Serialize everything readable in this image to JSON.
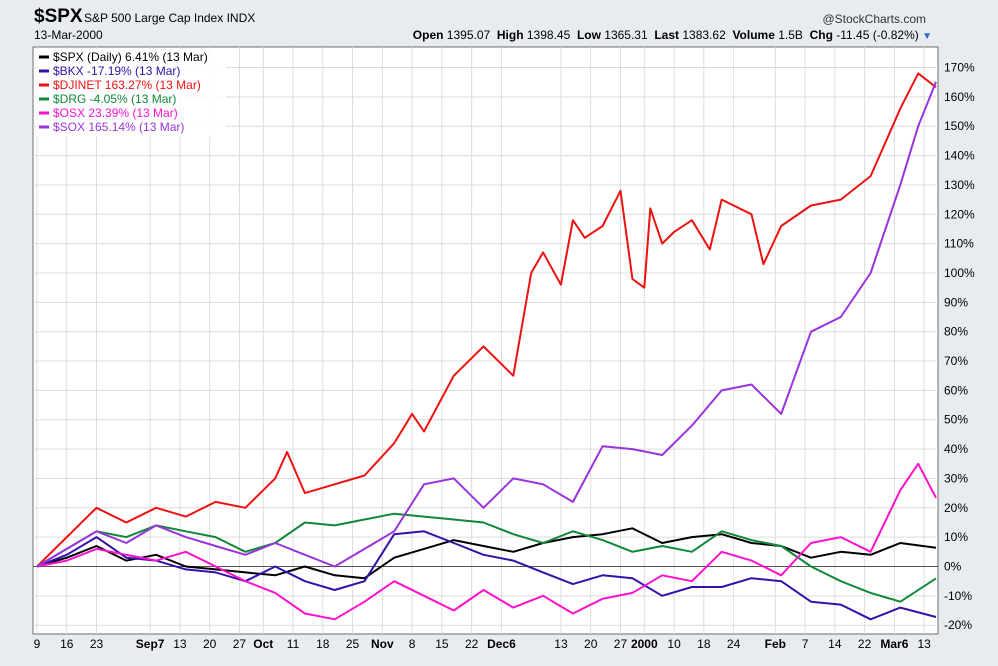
{
  "header": {
    "ticker": "$SPX",
    "index_name": "S&P 500 Large Cap Index",
    "exchange": "INDX",
    "brand": "@StockCharts.com",
    "date": "13-Mar-2000",
    "open_label": "Open",
    "open_value": "1395.07",
    "high_label": "High",
    "high_value": "1398.45",
    "low_label": "Low",
    "low_value": "1365.31",
    "last_label": "Last",
    "last_value": "1383.62",
    "volume_label": "Volume",
    "volume_value": "1.5B",
    "chg_label": "Chg",
    "chg_value": "-11.45 (-0.82%)"
  },
  "chart_data": {
    "type": "line",
    "ylim": [
      -23,
      177
    ],
    "y_ticks": [
      -20,
      -10,
      0,
      10,
      20,
      30,
      40,
      50,
      60,
      70,
      80,
      90,
      100,
      110,
      120,
      130,
      140,
      150,
      160,
      170
    ],
    "x_tick_labels": [
      {
        "x": 0,
        "label": "9"
      },
      {
        "x": 5,
        "label": "16"
      },
      {
        "x": 10,
        "label": "23"
      },
      {
        "x": 19,
        "label": "Sep7",
        "bold": true
      },
      {
        "x": 24,
        "label": "13"
      },
      {
        "x": 29,
        "label": "20"
      },
      {
        "x": 34,
        "label": "27"
      },
      {
        "x": 38,
        "label": "Oct",
        "bold": true
      },
      {
        "x": 43,
        "label": "11"
      },
      {
        "x": 48,
        "label": "18"
      },
      {
        "x": 53,
        "label": "25"
      },
      {
        "x": 58,
        "label": "Nov",
        "bold": true
      },
      {
        "x": 63,
        "label": "8"
      },
      {
        "x": 68,
        "label": "15"
      },
      {
        "x": 73,
        "label": "22"
      },
      {
        "x": 78,
        "label": "Dec6",
        "bold": true
      },
      {
        "x": 88,
        "label": "13"
      },
      {
        "x": 93,
        "label": "20"
      },
      {
        "x": 98,
        "label": "27"
      },
      {
        "x": 102,
        "label": "2000",
        "bold": true
      },
      {
        "x": 107,
        "label": "10"
      },
      {
        "x": 112,
        "label": "18"
      },
      {
        "x": 117,
        "label": "24"
      },
      {
        "x": 124,
        "label": "Feb",
        "bold": true
      },
      {
        "x": 129,
        "label": "7"
      },
      {
        "x": 134,
        "label": "14"
      },
      {
        "x": 139,
        "label": "22"
      },
      {
        "x": 144,
        "label": "Mar6",
        "bold": true
      },
      {
        "x": 149,
        "label": "13"
      }
    ],
    "x_max": 151,
    "zero_line": true,
    "grid": true,
    "legend_position": "top-left",
    "series": [
      {
        "name": "$SPX (Daily) 6.41% (13 Mar)",
        "color": "#000000",
        "x": [
          0,
          5,
          10,
          15,
          20,
          25,
          30,
          35,
          40,
          45,
          50,
          55,
          60,
          65,
          70,
          75,
          80,
          85,
          90,
          95,
          100,
          105,
          110,
          115,
          120,
          125,
          130,
          135,
          140,
          145,
          151
        ],
        "y": [
          0,
          3,
          7,
          2,
          4,
          0,
          -1,
          -2,
          -3,
          0,
          -3,
          -4,
          3,
          6,
          9,
          7,
          5,
          8,
          10,
          11,
          13,
          8,
          10,
          11,
          8,
          7,
          3,
          5,
          4,
          8,
          6.4
        ]
      },
      {
        "name": "$BKX -17.19% (13 Mar)",
        "color": "#3311aa",
        "x": [
          0,
          5,
          10,
          15,
          20,
          25,
          30,
          35,
          40,
          45,
          50,
          55,
          60,
          65,
          70,
          75,
          80,
          85,
          90,
          95,
          100,
          105,
          110,
          115,
          120,
          125,
          130,
          135,
          140,
          145,
          151
        ],
        "y": [
          0,
          4,
          10,
          3,
          2,
          -1,
          -2,
          -5,
          0,
          -5,
          -8,
          -5,
          11,
          12,
          8,
          4,
          2,
          -2,
          -6,
          -3,
          -4,
          -10,
          -7,
          -7,
          -4,
          -5,
          -12,
          -13,
          -18,
          -14,
          -17.2
        ]
      },
      {
        "name": "$DJINET 163.27% (13 Mar)",
        "color": "#ee1111",
        "x": [
          0,
          5,
          10,
          15,
          20,
          25,
          30,
          35,
          40,
          42,
          45,
          50,
          55,
          60,
          63,
          65,
          70,
          75,
          80,
          83,
          85,
          88,
          90,
          92,
          95,
          98,
          100,
          102,
          103,
          105,
          107,
          110,
          113,
          115,
          120,
          122,
          125,
          130,
          135,
          140,
          145,
          148,
          151
        ],
        "y": [
          0,
          10,
          20,
          15,
          20,
          17,
          22,
          20,
          30,
          39,
          25,
          28,
          31,
          42,
          52,
          46,
          65,
          75,
          65,
          100,
          107,
          96,
          118,
          112,
          116,
          128,
          98,
          95,
          122,
          110,
          114,
          118,
          108,
          125,
          120,
          103,
          116,
          123,
          125,
          133,
          156,
          168,
          163.3
        ]
      },
      {
        "name": "$DRG -4.05% (13 Mar)",
        "color": "#11883a",
        "x": [
          0,
          5,
          10,
          15,
          20,
          25,
          30,
          35,
          40,
          45,
          50,
          55,
          60,
          65,
          70,
          75,
          80,
          85,
          90,
          95,
          100,
          105,
          110,
          115,
          120,
          125,
          130,
          135,
          140,
          145,
          151
        ],
        "y": [
          0,
          6,
          12,
          10,
          14,
          12,
          10,
          5,
          8,
          15,
          14,
          16,
          18,
          17,
          16,
          15,
          11,
          8,
          12,
          9,
          5,
          7,
          5,
          12,
          9,
          7,
          0,
          -5,
          -9,
          -12,
          -4.05
        ]
      },
      {
        "name": "$OSX 23.39% (13 Mar)",
        "color": "#ff11cc",
        "x": [
          0,
          5,
          10,
          15,
          20,
          25,
          30,
          35,
          40,
          45,
          50,
          55,
          60,
          65,
          70,
          75,
          80,
          85,
          90,
          95,
          100,
          105,
          110,
          115,
          120,
          125,
          130,
          135,
          140,
          145,
          148,
          151
        ],
        "y": [
          0,
          2,
          6,
          4,
          2,
          5,
          0,
          -5,
          -9,
          -16,
          -18,
          -12,
          -5,
          -10,
          -15,
          -8,
          -14,
          -10,
          -16,
          -11,
          -9,
          -3,
          -5,
          5,
          2,
          -3,
          8,
          10,
          5,
          26,
          35,
          23.4
        ]
      },
      {
        "name": "$SOX 165.14% (13 Mar)",
        "color": "#9933dd",
        "x": [
          0,
          5,
          10,
          15,
          20,
          25,
          30,
          35,
          40,
          45,
          50,
          55,
          60,
          65,
          70,
          75,
          80,
          85,
          90,
          95,
          100,
          105,
          110,
          115,
          120,
          125,
          130,
          135,
          140,
          145,
          148,
          151
        ],
        "y": [
          0,
          6,
          12,
          8,
          14,
          10,
          7,
          4,
          8,
          4,
          0,
          6,
          12,
          28,
          30,
          20,
          30,
          28,
          22,
          41,
          40,
          38,
          48,
          60,
          62,
          52,
          80,
          85,
          100,
          130,
          150,
          165.1
        ]
      }
    ]
  }
}
